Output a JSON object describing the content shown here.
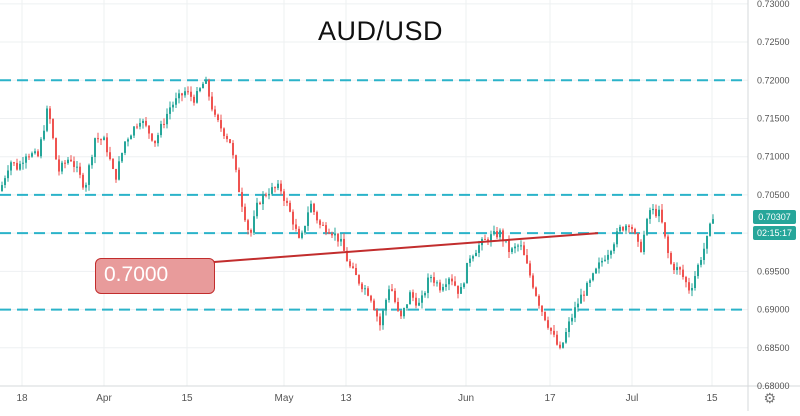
{
  "title": "AUD/USD",
  "callout": {
    "label": "0.7000"
  },
  "price_tags": {
    "last_price": "0.70307",
    "countdown": "02:15:17"
  },
  "settings_icon": "gear-icon",
  "colors": {
    "up": "#26a69a",
    "down": "#ef5350",
    "level_line": "#2bb3c9",
    "trend_line": "#c22d2d",
    "callout_fill": "#e89b9b",
    "axis_text": "#555555",
    "grid": "#eef0f2"
  },
  "chart_data": {
    "type": "candlestick",
    "title": "AUD/USD",
    "x_tick_labels": [
      "18",
      "Apr",
      "15",
      "May",
      "13",
      "Jun",
      "17",
      "Jul",
      "15"
    ],
    "y_tick_labels": [
      "0.73000",
      "0.72500",
      "0.72000",
      "0.71500",
      "0.71000",
      "0.70500",
      "0.70000",
      "0.69500",
      "0.69000",
      "0.68500",
      "0.68000"
    ],
    "ylim": [
      0.68,
      0.7305
    ],
    "horizontal_levels": [
      0.72,
      0.705,
      0.7,
      0.69
    ],
    "annotation": {
      "text": "0.7000",
      "price": 0.7
    },
    "last_price": 0.70307,
    "series_path": [
      [
        0,
        0.7055
      ],
      [
        10,
        0.7095
      ],
      [
        18,
        0.7085
      ],
      [
        26,
        0.7105
      ],
      [
        38,
        0.71
      ],
      [
        48,
        0.7165
      ],
      [
        58,
        0.708
      ],
      [
        70,
        0.71
      ],
      [
        85,
        0.706
      ],
      [
        95,
        0.7125
      ],
      [
        105,
        0.712
      ],
      [
        115,
        0.707
      ],
      [
        125,
        0.712
      ],
      [
        140,
        0.715
      ],
      [
        155,
        0.712
      ],
      [
        170,
        0.7165
      ],
      [
        185,
        0.7185
      ],
      [
        195,
        0.7175
      ],
      [
        205,
        0.72
      ],
      [
        215,
        0.715
      ],
      [
        230,
        0.712
      ],
      [
        240,
        0.705
      ],
      [
        250,
        0.6995
      ],
      [
        258,
        0.704
      ],
      [
        268,
        0.7055
      ],
      [
        280,
        0.706
      ],
      [
        292,
        0.702
      ],
      [
        300,
        0.6985
      ],
      [
        310,
        0.704
      ],
      [
        320,
        0.701
      ],
      [
        330,
        0.7005
      ],
      [
        340,
        0.699
      ],
      [
        350,
        0.6955
      ],
      [
        360,
        0.6935
      ],
      [
        370,
        0.692
      ],
      [
        380,
        0.688
      ],
      [
        390,
        0.6935
      ],
      [
        400,
        0.6885
      ],
      [
        410,
        0.692
      ],
      [
        420,
        0.6905
      ],
      [
        430,
        0.6945
      ],
      [
        440,
        0.693
      ],
      [
        450,
        0.6945
      ],
      [
        460,
        0.692
      ],
      [
        470,
        0.697
      ],
      [
        480,
        0.6985
      ],
      [
        490,
        0.6995
      ],
      [
        500,
        0.7
      ],
      [
        510,
        0.6975
      ],
      [
        520,
        0.6985
      ],
      [
        530,
        0.6945
      ],
      [
        540,
        0.6905
      ],
      [
        550,
        0.6875
      ],
      [
        560,
        0.6845
      ],
      [
        570,
        0.6885
      ],
      [
        580,
        0.6915
      ],
      [
        590,
        0.6935
      ],
      [
        600,
        0.696
      ],
      [
        610,
        0.698
      ],
      [
        620,
        0.7005
      ],
      [
        630,
        0.7015
      ],
      [
        640,
        0.6975
      ],
      [
        650,
        0.703
      ],
      [
        660,
        0.7025
      ],
      [
        670,
        0.696
      ],
      [
        680,
        0.695
      ],
      [
        690,
        0.6925
      ],
      [
        700,
        0.6965
      ],
      [
        708,
        0.6995
      ],
      [
        714,
        0.703
      ]
    ],
    "grid": true
  }
}
